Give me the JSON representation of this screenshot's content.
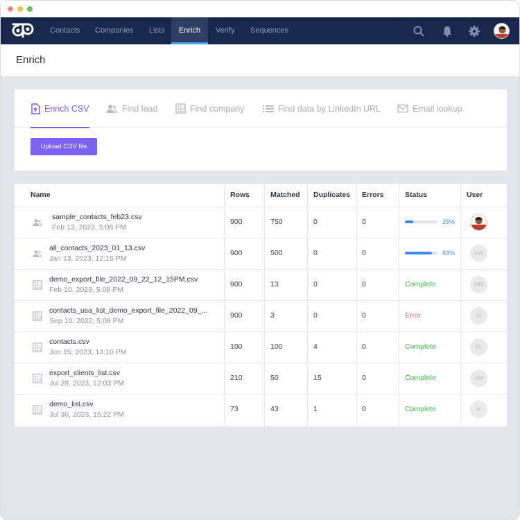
{
  "nav": {
    "items": [
      "Contacts",
      "Companies",
      "Lists",
      "Enrich",
      "Verify",
      "Sequences"
    ],
    "active": "Enrich",
    "icons": [
      "search-icon",
      "bell-icon",
      "gear-icon"
    ],
    "colors": {
      "navbar": "#17284a",
      "active_bg": "#2c3e62",
      "active_underline": "#4aa3f2"
    }
  },
  "page": {
    "title": "Enrich"
  },
  "tabs": [
    {
      "label": "Enrich CSV",
      "icon": "upload-file-icon",
      "active": true
    },
    {
      "label": "Find lead",
      "icon": "people-icon",
      "active": false
    },
    {
      "label": "Find company",
      "icon": "building-icon",
      "active": false
    },
    {
      "label": "Find data by LinkedIn URL",
      "icon": "list-icon",
      "active": false
    },
    {
      "label": "Email lookup",
      "icon": "mail-icon",
      "active": false
    }
  ],
  "upload_button": {
    "label": "Upload CSV file",
    "color": "#7c61f7"
  },
  "table": {
    "columns": [
      "Name",
      "Rows",
      "Matched",
      "Duplicates",
      "Errors",
      "Status",
      "User"
    ],
    "rows": [
      {
        "name": "sample_contacts_feb23.csv",
        "date": "Feb 13, 2023, 5:08 PM",
        "rows": "900",
        "matched": "750",
        "duplicates": "0",
        "errors": "0",
        "status": "",
        "progress_label": "25%",
        "progress": 0.25,
        "user": "",
        "icon": "people-icon"
      },
      {
        "name": "all_contacts_2023_01_13.csv",
        "date": "Jan 13, 2023, 12:15 PM",
        "rows": "900",
        "matched": "500",
        "duplicates": "0",
        "errors": "0",
        "status": "",
        "progress_label": "83%",
        "progress": 0.83,
        "user": "KW",
        "icon": "people-icon"
      },
      {
        "name": "demo_export_file_2022_09_22_12_15PM.csv",
        "date": "Feb 10, 2023, 5:08 PM",
        "rows": "900",
        "matched": "13",
        "duplicates": "0",
        "errors": "0",
        "status": "Complete",
        "user": "MM",
        "icon": "building-icon"
      },
      {
        "name": "contacts_usa_list_demo_export_file_2022_09_...",
        "date": "Sep 10, 2022, 5:08 PM",
        "rows": "900",
        "matched": "3",
        "duplicates": "0",
        "errors": "0",
        "status": "Error",
        "user": "JC",
        "icon": "building-icon"
      },
      {
        "name": "contacts.csv",
        "date": "Jun 15, 2023, 14:10 PM",
        "rows": "100",
        "matched": "100",
        "duplicates": "4",
        "errors": "0",
        "status": "Complete",
        "user": "KL",
        "icon": "building-icon"
      },
      {
        "name": "export_clients_list.csv",
        "date": "Jul 29, 2023, 12:03 PM",
        "rows": "210",
        "matched": "50",
        "duplicates": "15",
        "errors": "0",
        "status": "Complete",
        "user": "AM",
        "icon": "building-icon"
      },
      {
        "name": "demo_list.csv",
        "date": "Jul 30, 2023, 16:22 PM",
        "rows": "73",
        "matched": "43",
        "duplicates": "1",
        "errors": "0",
        "status": "Complete",
        "user": "IK",
        "icon": "building-icon"
      }
    ]
  },
  "colors": {
    "accent": "#7b5cf5",
    "complete": "#3fb545",
    "error": "#d46a6a",
    "progress": "#3b8df1"
  }
}
